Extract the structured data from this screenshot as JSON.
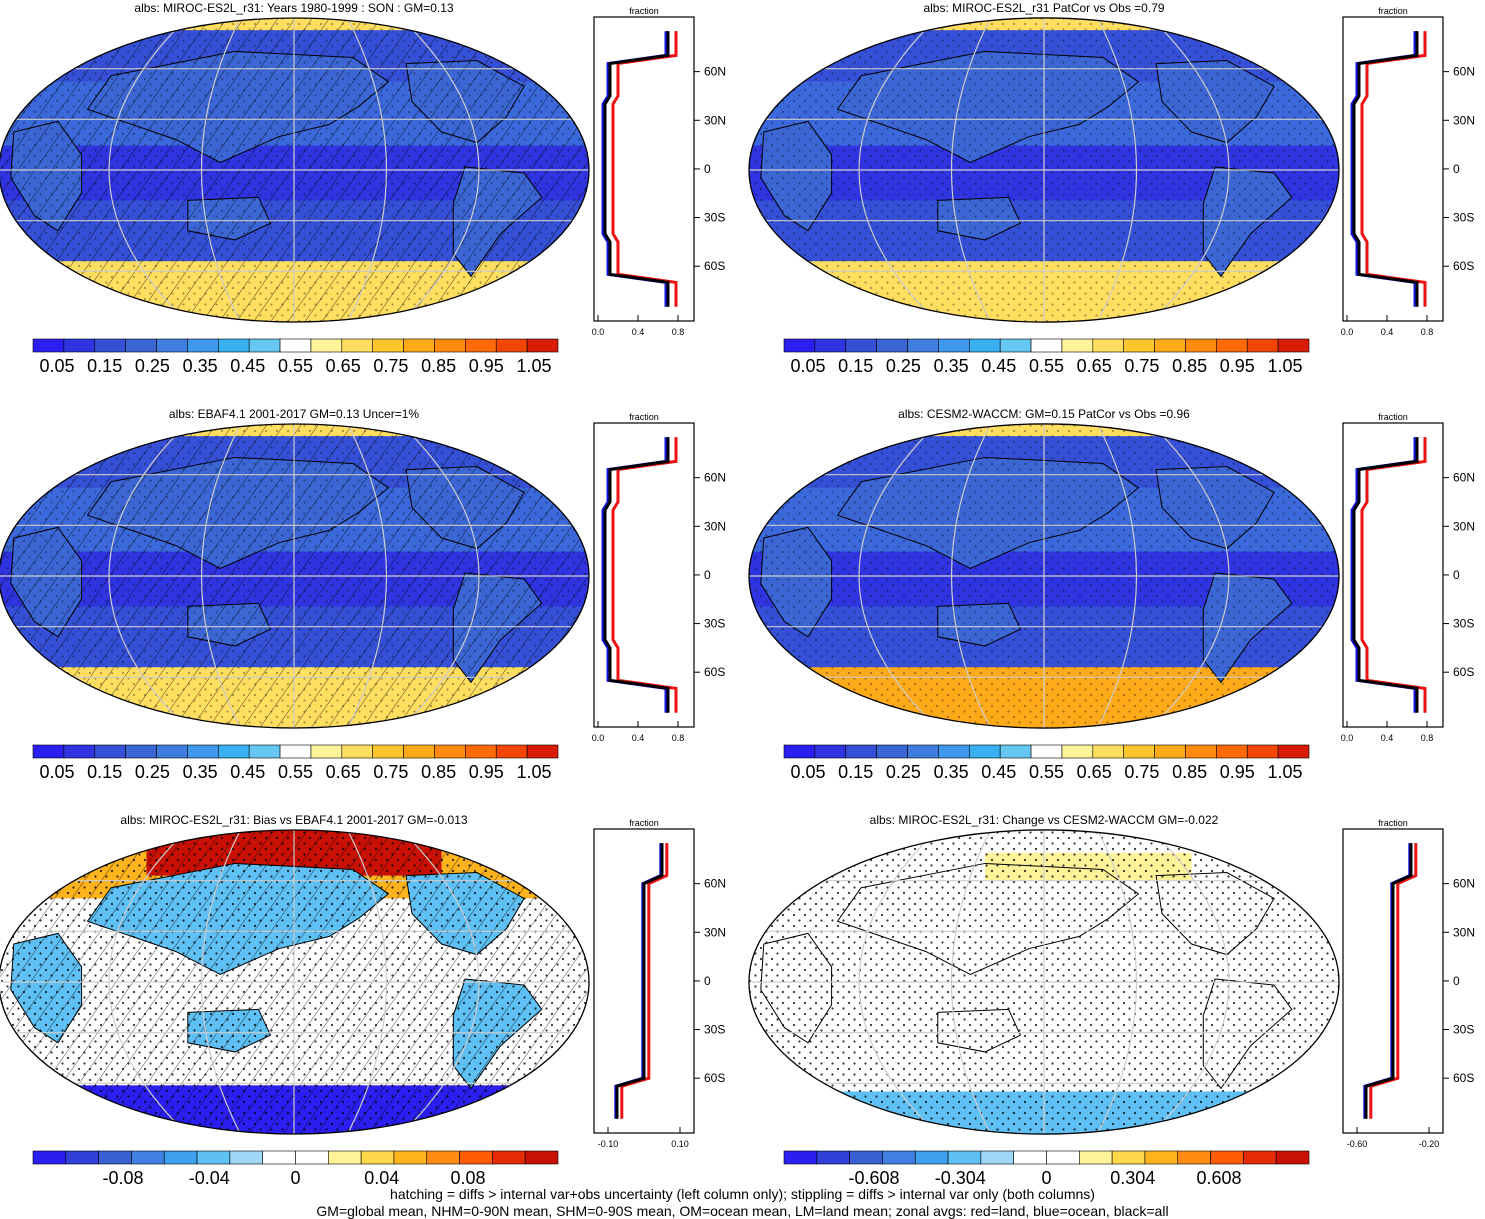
{
  "colors": {
    "abs_scale": [
      "#2a1ff0",
      "#2f34e0",
      "#3550d6",
      "#3b66d4",
      "#3f7ee0",
      "#3f98ee",
      "#38b0f2",
      "#66c8f2",
      "#ffffff",
      "#fff39a",
      "#ffde60",
      "#ffc72e",
      "#ffaa18",
      "#ff8a0e",
      "#ff6a08",
      "#f24606",
      "#d81c06"
    ],
    "diff_scale": [
      "#2a1ff0",
      "#3040d8",
      "#3a5fd2",
      "#3f80e2",
      "#40a0f0",
      "#5ec0f4",
      "#9ed8f6",
      "#ffffff",
      "#ffffff",
      "#fff39a",
      "#ffd84c",
      "#ffb41e",
      "#ff8c10",
      "#ff5c08",
      "#e52a06",
      "#c81004"
    ],
    "land_line": "#ee1111",
    "ocean_line": "#1515e6",
    "all_line": "#000000"
  },
  "panels": [
    {
      "title": "albs: MIROC-ES2L_r31: Years 1980-1999 : SON : GM=0.13",
      "kind": "abs",
      "hatch": true,
      "colorbar": [
        "0.05",
        "0.15",
        "0.25",
        "0.35",
        "0.45",
        "0.55",
        "0.65",
        "0.75",
        "0.85",
        "0.95",
        "1.05"
      ],
      "zonal_xticks": [
        "0.0",
        "0.4",
        "0.8"
      ],
      "zonal_title": "fraction",
      "lat_labels": [
        "60N",
        "30N",
        "0",
        "30S",
        "60S"
      ]
    },
    {
      "title": "albs: MIROC-ES2L_r31 PatCor vs Obs =0.79",
      "kind": "abs",
      "hatch": false,
      "colorbar": [
        "0.05",
        "0.15",
        "0.25",
        "0.35",
        "0.45",
        "0.55",
        "0.65",
        "0.75",
        "0.85",
        "0.95",
        "1.05"
      ],
      "zonal_xticks": [
        "0.0",
        "0.4",
        "0.8"
      ],
      "zonal_title": "fraction",
      "lat_labels": [
        "60N",
        "30N",
        "0",
        "30S",
        "60S"
      ]
    },
    {
      "title": "albs: EBAF4.1 2001-2017 GM=0.13 Uncer=1%",
      "kind": "abs",
      "hatch": true,
      "colorbar": [
        "0.05",
        "0.15",
        "0.25",
        "0.35",
        "0.45",
        "0.55",
        "0.65",
        "0.75",
        "0.85",
        "0.95",
        "1.05"
      ],
      "zonal_xticks": [
        "0.0",
        "0.4",
        "0.8"
      ],
      "zonal_title": "fraction",
      "lat_labels": [
        "60N",
        "30N",
        "0",
        "30S",
        "60S"
      ]
    },
    {
      "title": "albs: CESM2-WACCM: GM=0.15 PatCor vs Obs =0.96",
      "kind": "abs",
      "hatch": false,
      "colorbar": [
        "0.05",
        "0.15",
        "0.25",
        "0.35",
        "0.45",
        "0.55",
        "0.65",
        "0.75",
        "0.85",
        "0.95",
        "1.05"
      ],
      "zonal_xticks": [
        "0.0",
        "0.4",
        "0.8"
      ],
      "zonal_title": "fraction",
      "lat_labels": [
        "60N",
        "30N",
        "0",
        "30S",
        "60S"
      ]
    },
    {
      "title": "albs: MIROC-ES2L_r31: Bias vs EBAF4.1 2001-2017  GM=-0.013",
      "kind": "bias",
      "hatch": true,
      "colorbar": [
        "-0.08",
        "-0.04",
        "0",
        "0.04",
        "0.08"
      ],
      "zonal_xticks": [
        "-0.10",
        "0.10"
      ],
      "zonal_title": "fraction",
      "lat_labels": [
        "60N",
        "30N",
        "0",
        "30S",
        "60S"
      ]
    },
    {
      "title": "albs: MIROC-ES2L_r31: Change vs CESM2-WACCM GM=-0.022",
      "kind": "change",
      "hatch": false,
      "colorbar": [
        "-0.608",
        "-0.304",
        "0",
        "0.304",
        "0.608"
      ],
      "zonal_xticks": [
        "-0.60",
        "-0.20"
      ],
      "zonal_title": "fraction",
      "lat_labels": [
        "60N",
        "30N",
        "0",
        "30S",
        "60S"
      ]
    }
  ],
  "footer": {
    "line1": "hatching = diffs > internal var+obs uncertainty (left column only); stippling = diffs > internal var only (both columns)",
    "line2": "GM=global mean, NHM=0-90N mean, SHM=0-90S mean, OM=ocean mean, LM=land mean; zonal avgs: red=land, blue=ocean, black=all"
  }
}
